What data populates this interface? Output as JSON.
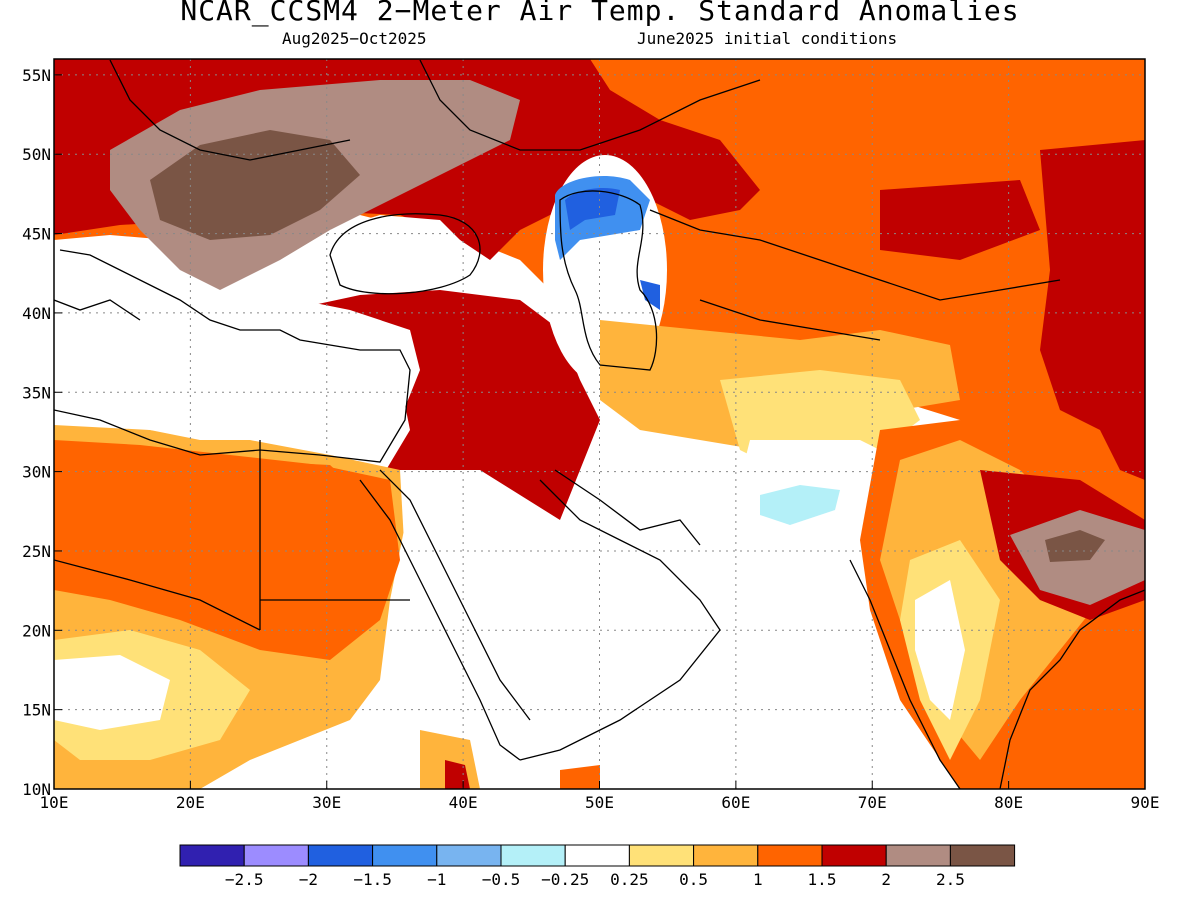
{
  "map": {
    "title": "NCAR_CCSM4 2−Meter Air Temp. Standard Anomalies",
    "period": "Aug2025−Oct2025",
    "initial_conditions": "June2025 initial conditions",
    "lon_labels": [
      "10E",
      "20E",
      "30E",
      "40E",
      "50E",
      "60E",
      "70E",
      "80E",
      "90E"
    ],
    "lat_labels": [
      "10N",
      "15N",
      "20N",
      "25N",
      "30N",
      "35N",
      "40N",
      "45N",
      "50N",
      "55N"
    ],
    "lon_range": [
      10,
      90
    ],
    "lat_range": [
      10,
      56
    ],
    "gridlines": true
  },
  "legend": {
    "colors": [
      "#3020b0",
      "#9c8cff",
      "#2060e0",
      "#4090f0",
      "#78b4f0",
      "#b4f0f8",
      "#ffffff",
      "#ffe178",
      "#ffb43c",
      "#ff6400",
      "#c00000",
      "#b08c82",
      "#7a5545"
    ],
    "labels": [
      "−2.5",
      "−2",
      "−1.5",
      "−1",
      "−0.5",
      "−0.25",
      "0.25",
      "0.5",
      "1",
      "1.5",
      "2",
      "2.5"
    ]
  }
}
